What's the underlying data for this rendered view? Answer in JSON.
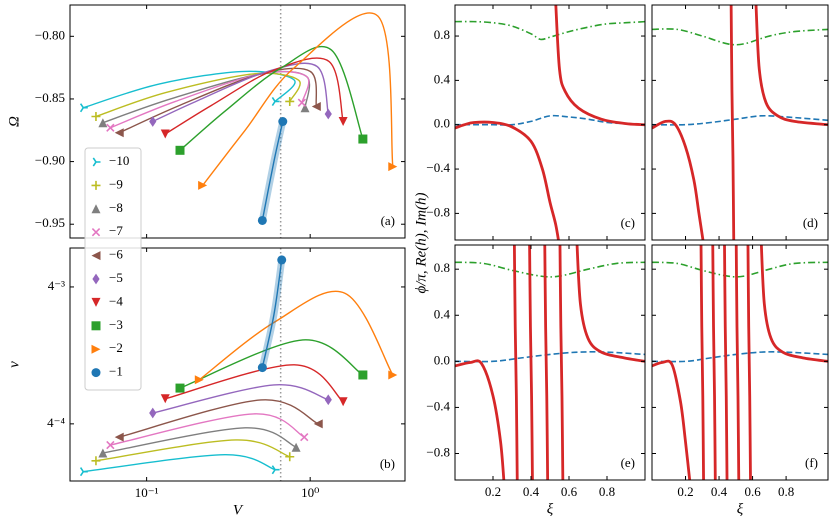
{
  "chart_data": [
    {
      "type": "line",
      "panel_label": "(a)",
      "ylabel": "Ω",
      "xscale": "log",
      "xlim": [
        0.034,
        3.8
      ],
      "xticks": [
        {
          "value": 0.1,
          "label": "10⁻¹"
        },
        {
          "value": 1,
          "label": "10⁰"
        }
      ],
      "show_xticklabels": false,
      "ylim": [
        -0.961,
        -0.775
      ],
      "yticks": [
        {
          "value": -0.8,
          "label": "−0.80"
        },
        {
          "value": -0.85,
          "label": "−0.85"
        },
        {
          "value": -0.9,
          "label": "−0.90"
        },
        {
          "value": -0.95,
          "label": "−0.95"
        }
      ],
      "vline": 0.66,
      "legend": "center left",
      "series": [
        {
          "name": "−10",
          "color": "#17becf",
          "marker": "tri_right",
          "x": [
            0.041,
            0.12,
            0.4,
            0.8,
            0.61
          ],
          "values": [
            -0.857,
            -0.838,
            -0.828,
            -0.835,
            -0.852
          ]
        },
        {
          "name": "−9",
          "color": "#bcbd22",
          "marker": "plus",
          "x": [
            0.049,
            0.13,
            0.45,
            0.85,
            0.75
          ],
          "values": [
            -0.864,
            -0.845,
            -0.83,
            -0.835,
            -0.852
          ]
        },
        {
          "name": "−8",
          "color": "#7f7f7f",
          "marker": "triangle_up",
          "x": [
            0.054,
            0.14,
            0.5,
            0.95,
            0.93
          ],
          "values": [
            -0.869,
            -0.85,
            -0.83,
            -0.832,
            -0.857
          ]
        },
        {
          "name": "−7",
          "color": "#e377c2",
          "marker": "x",
          "x": [
            0.06,
            0.15,
            0.5,
            0.95,
            0.89
          ],
          "values": [
            -0.873,
            -0.852,
            -0.83,
            -0.832,
            -0.853
          ]
        },
        {
          "name": "−6",
          "color": "#8c564b",
          "marker": "triangle_left",
          "x": [
            0.068,
            0.16,
            0.5,
            1.0,
            1.09
          ],
          "values": [
            -0.877,
            -0.855,
            -0.83,
            -0.828,
            -0.856
          ]
        },
        {
          "name": "−5",
          "color": "#9467bd",
          "marker": "diamond",
          "x": [
            0.109,
            0.2,
            0.55,
            1.1,
            1.29
          ],
          "values": [
            -0.868,
            -0.852,
            -0.828,
            -0.824,
            -0.862
          ]
        },
        {
          "name": "−4",
          "color": "#d62728",
          "marker": "triangle_down",
          "x": [
            0.13,
            0.25,
            0.6,
            1.3,
            1.59
          ],
          "values": [
            -0.878,
            -0.855,
            -0.827,
            -0.82,
            -0.868
          ]
        },
        {
          "name": "−3",
          "color": "#2ca02c",
          "marker": "square",
          "x": [
            0.16,
            0.3,
            0.65,
            1.35,
            2.1
          ],
          "values": [
            -0.891,
            -0.86,
            -0.826,
            -0.811,
            -0.882
          ]
        },
        {
          "name": "−2",
          "color": "#ff7f0e",
          "marker": "triangle_right",
          "x": [
            0.22,
            0.4,
            0.8,
            2.6,
            3.2
          ],
          "values": [
            -0.919,
            -0.875,
            -0.825,
            -0.784,
            -0.904
          ]
        },
        {
          "name": "−1",
          "color": "#1f77b4",
          "marker": "circle",
          "shade": true,
          "x": [
            0.51,
            0.6,
            0.68
          ],
          "values": [
            -0.947,
            -0.9,
            -0.868
          ]
        }
      ]
    },
    {
      "type": "line",
      "panel_label": "(b)",
      "ylabel": "v",
      "xlabel": "V",
      "xscale": "log",
      "yscale": "log",
      "xlim": [
        0.034,
        3.8
      ],
      "xticks": [
        {
          "value": 0.1,
          "label": "10⁻¹"
        },
        {
          "value": 1,
          "label": "10⁰"
        }
      ],
      "ylim": [
        0.000153,
        0.0077
      ],
      "yticks": [
        {
          "value": 0.004,
          "label": "4⁻³"
        },
        {
          "value": 0.0004,
          "label": "4⁻⁴"
        }
      ],
      "vline": 0.66,
      "series": [
        {
          "color": "#17becf",
          "marker": "tri_right",
          "x": [
            0.041,
            0.3,
            0.61
          ],
          "values": [
            0.000179,
            0.000238,
            0.000185
          ]
        },
        {
          "color": "#bcbd22",
          "marker": "plus",
          "x": [
            0.049,
            0.35,
            0.75
          ],
          "values": [
            0.000215,
            0.000305,
            0.00023
          ]
        },
        {
          "color": "#7f7f7f",
          "marker": "triangle_up",
          "x": [
            0.054,
            0.4,
            0.82
          ],
          "values": [
            0.000245,
            0.000374,
            0.00027
          ]
        },
        {
          "color": "#e377c2",
          "marker": "x",
          "x": [
            0.06,
            0.45,
            0.92
          ],
          "values": [
            0.00028,
            0.000473,
            0.00032
          ]
        },
        {
          "color": "#8c564b",
          "marker": "triangle_left",
          "x": [
            0.068,
            0.5,
            1.12
          ],
          "values": [
            0.00032,
            0.000598,
            0.0004
          ]
        },
        {
          "color": "#9467bd",
          "marker": "diamond",
          "x": [
            0.109,
            0.6,
            1.29
          ],
          "values": [
            0.00048,
            0.00077,
            0.0006
          ]
        },
        {
          "color": "#d62728",
          "marker": "triangle_down",
          "x": [
            0.13,
            0.8,
            1.59
          ],
          "values": [
            0.00061,
            0.00108,
            0.00058
          ]
        },
        {
          "color": "#2ca02c",
          "marker": "square",
          "x": [
            0.16,
            0.9,
            2.1
          ],
          "values": [
            0.00073,
            0.00164,
            0.00091
          ]
        },
        {
          "color": "#ff7f0e",
          "marker": "triangle_right",
          "x": [
            0.21,
            0.6,
            1.63,
            3.2
          ],
          "values": [
            0.00084,
            0.0022,
            0.0036,
            0.00091
          ]
        },
        {
          "color": "#1f77b4",
          "marker": "circle",
          "shade": true,
          "x": [
            0.51,
            0.6,
            0.67
          ],
          "values": [
            0.00103,
            0.0025,
            0.0063
          ]
        }
      ]
    },
    {
      "type": "line",
      "panel_label": "(c)",
      "ylabel": "ϕ/π,  Re(h),  Im(h)",
      "xlim": [
        0,
        1
      ],
      "ylim": [
        -1.04,
        1.08
      ],
      "xticks": [
        0.2,
        0.4,
        0.6,
        0.8
      ],
      "show_xticklabels": false,
      "yticks": [
        0.8,
        0.4,
        {
          "value": 0,
          "label": "0.0"
        },
        {
          "value": -0.4,
          "label": "−0.4"
        },
        {
          "value": -0.8,
          "label": "−0.8"
        }
      ],
      "series": [
        {
          "color": "#2ca02c",
          "dash": "dashdot",
          "x": [
            0,
            0.1,
            0.2,
            0.3,
            0.4,
            0.45,
            0.5,
            0.6,
            0.7,
            0.8,
            0.9,
            1.0
          ],
          "values": [
            0.93,
            0.93,
            0.92,
            0.89,
            0.82,
            0.77,
            0.79,
            0.84,
            0.88,
            0.91,
            0.92,
            0.93
          ]
        },
        {
          "color": "#1f77b4",
          "dash": "dashed",
          "x": [
            0,
            0.1,
            0.2,
            0.3,
            0.4,
            0.5,
            0.6,
            0.7,
            0.8,
            0.9,
            1.0
          ],
          "values": [
            0,
            0,
            0,
            0,
            0.03,
            0.08,
            0.07,
            0.05,
            0.02,
            0.01,
            0
          ]
        },
        {
          "color": "#d62728",
          "dash": "solid",
          "x": [
            0,
            0.05,
            0.1,
            0.2,
            0.3,
            0.4,
            0.46,
            0.5,
            0.53,
            0.55
          ],
          "values": [
            -0.03,
            0,
            0.02,
            0.02,
            -0.02,
            -0.15,
            -0.4,
            -0.7,
            -0.9,
            -1.1
          ]
        },
        {
          "color": "#d62728",
          "dash": "solid",
          "x": [
            0.53,
            0.55,
            0.58,
            0.65,
            0.77,
            0.9,
            1.0
          ],
          "values": [
            1.1,
            0.5,
            0.3,
            0.15,
            0.05,
            0.01,
            0
          ]
        }
      ]
    },
    {
      "type": "line",
      "panel_label": "(d)",
      "xlim": [
        0,
        1.05
      ],
      "ylim": [
        -1.04,
        1.08
      ],
      "xticks": [
        0.2,
        0.4,
        0.6,
        0.8
      ],
      "show_xticklabels": false,
      "yticks": [
        0.8,
        0.4,
        0,
        -0.4,
        -0.8
      ],
      "show_yticklabels": false,
      "series": [
        {
          "color": "#2ca02c",
          "dash": "dashdot",
          "x": [
            0,
            0.15,
            0.3,
            0.45,
            0.55,
            0.7,
            0.85,
            1.05
          ],
          "values": [
            0.86,
            0.86,
            0.8,
            0.73,
            0.73,
            0.8,
            0.84,
            0.86
          ]
        },
        {
          "color": "#1f77b4",
          "dash": "dashed",
          "x": [
            0,
            0.2,
            0.35,
            0.5,
            0.65,
            0.8,
            1.05
          ],
          "values": [
            0,
            0,
            0.02,
            0.05,
            0.08,
            0.07,
            0.04
          ]
        },
        {
          "color": "#d62728",
          "dash": "solid",
          "x": [
            0,
            0.08,
            0.14,
            0.2,
            0.25,
            0.28,
            0.31
          ],
          "values": [
            -0.03,
            0.03,
            0,
            -0.2,
            -0.5,
            -0.8,
            -1.1
          ]
        },
        {
          "color": "#d62728",
          "dash": "solid",
          "x": [
            0.472,
            0.477,
            0.483,
            0.488
          ],
          "values": [
            1.1,
            0.3,
            -0.3,
            -1.1
          ]
        },
        {
          "color": "#d62728",
          "dash": "solid",
          "x": [
            0.62,
            0.64,
            0.68,
            0.75,
            0.85,
            1.05
          ],
          "values": [
            1.1,
            0.5,
            0.2,
            0.08,
            0.03,
            0
          ]
        }
      ]
    },
    {
      "type": "line",
      "panel_label": "(e)",
      "xlabel": "ξ",
      "xlim": [
        0,
        1
      ],
      "ylim": [
        -1.03,
        1.01
      ],
      "xticks": [
        0.2,
        0.4,
        0.6,
        0.8
      ],
      "yticks": [
        0.8,
        0.4,
        {
          "value": 0,
          "label": "0.0"
        },
        {
          "value": -0.4,
          "label": "−0.4"
        },
        {
          "value": -0.8,
          "label": "−0.8"
        }
      ],
      "series": [
        {
          "color": "#2ca02c",
          "dash": "dashdot",
          "x": [
            0,
            0.15,
            0.3,
            0.45,
            0.55,
            0.7,
            0.85,
            1.0
          ],
          "values": [
            0.86,
            0.85,
            0.79,
            0.74,
            0.74,
            0.8,
            0.85,
            0.86
          ]
        },
        {
          "color": "#1f77b4",
          "dash": "dashed",
          "x": [
            0,
            0.2,
            0.35,
            0.5,
            0.65,
            0.8,
            1.0
          ],
          "values": [
            0,
            0,
            0.03,
            0.06,
            0.08,
            0.08,
            0.06
          ]
        },
        {
          "color": "#d62728",
          "dash": "solid",
          "x": [
            0,
            0.08,
            0.14,
            0.2,
            0.24,
            0.26
          ],
          "values": [
            -0.04,
            -0.01,
            -0.02,
            -0.3,
            -0.7,
            -1.1
          ]
        },
        {
          "color": "#d62728",
          "dash": "solid",
          "x": [
            0.312,
            0.317,
            0.323,
            0.328
          ],
          "values": [
            1.1,
            0.3,
            -0.3,
            -1.1
          ]
        },
        {
          "color": "#d62728",
          "dash": "solid",
          "x": [
            0.392,
            0.397,
            0.403,
            0.408
          ],
          "values": [
            1.1,
            0.3,
            -0.3,
            -1.1
          ]
        },
        {
          "color": "#d62728",
          "dash": "solid",
          "x": [
            0.472,
            0.477,
            0.483,
            0.488
          ],
          "values": [
            1.1,
            0.3,
            -0.3,
            -1.1
          ]
        },
        {
          "color": "#d62728",
          "dash": "solid",
          "x": [
            0.552,
            0.557,
            0.563,
            0.568
          ],
          "values": [
            1.1,
            0.3,
            -0.3,
            -1.1
          ]
        },
        {
          "color": "#d62728",
          "dash": "solid",
          "x": [
            0.64,
            0.66,
            0.7,
            0.77,
            0.89,
            1.0
          ],
          "values": [
            1.1,
            0.5,
            0.2,
            0.08,
            0.03,
            0
          ]
        }
      ]
    },
    {
      "type": "line",
      "panel_label": "(f)",
      "xlabel": "ξ",
      "xlim": [
        0,
        1.05
      ],
      "ylim": [
        -1.03,
        1.01
      ],
      "xticks": [
        0.2,
        0.4,
        0.6,
        0.8
      ],
      "yticks": [
        0.8,
        0.4,
        0,
        -0.4,
        -0.8
      ],
      "show_yticklabels": false,
      "series": [
        {
          "color": "#2ca02c",
          "dash": "dashdot",
          "x": [
            0,
            0.15,
            0.3,
            0.45,
            0.55,
            0.7,
            0.85,
            1.05
          ],
          "values": [
            0.86,
            0.85,
            0.79,
            0.74,
            0.74,
            0.8,
            0.85,
            0.86
          ]
        },
        {
          "color": "#1f77b4",
          "dash": "dashed",
          "x": [
            0,
            0.2,
            0.35,
            0.5,
            0.65,
            0.8,
            1.05
          ],
          "values": [
            0,
            0,
            0.03,
            0.06,
            0.08,
            0.08,
            0.06
          ]
        },
        {
          "color": "#d62728",
          "dash": "solid",
          "x": [
            0,
            0.06,
            0.12,
            0.17,
            0.2,
            0.23
          ],
          "values": [
            -0.04,
            -0.01,
            -0.03,
            -0.35,
            -0.7,
            -1.1
          ]
        },
        {
          "color": "#d62728",
          "dash": "solid",
          "x": [
            0.292,
            0.297,
            0.303,
            0.308
          ],
          "values": [
            1.1,
            0.3,
            -0.3,
            -1.1
          ]
        },
        {
          "color": "#d62728",
          "dash": "solid",
          "x": [
            0.362,
            0.367,
            0.373,
            0.378
          ],
          "values": [
            1.1,
            0.3,
            -0.3,
            -1.1
          ]
        },
        {
          "color": "#d62728",
          "dash": "solid",
          "x": [
            0.432,
            0.437,
            0.443,
            0.448
          ],
          "values": [
            1.1,
            0.3,
            -0.3,
            -1.1
          ]
        },
        {
          "color": "#d62728",
          "dash": "solid",
          "x": [
            0.502,
            0.507,
            0.513,
            0.518
          ],
          "values": [
            1.1,
            0.3,
            -0.3,
            -1.1
          ]
        },
        {
          "color": "#d62728",
          "dash": "solid",
          "x": [
            0.572,
            0.577,
            0.583,
            0.588
          ],
          "values": [
            1.1,
            0.3,
            -0.3,
            -1.1
          ]
        },
        {
          "color": "#d62728",
          "dash": "solid",
          "x": [
            0.65,
            0.67,
            0.71,
            0.78,
            0.9,
            1.05
          ],
          "values": [
            1.1,
            0.5,
            0.2,
            0.08,
            0.03,
            0
          ]
        }
      ]
    }
  ]
}
